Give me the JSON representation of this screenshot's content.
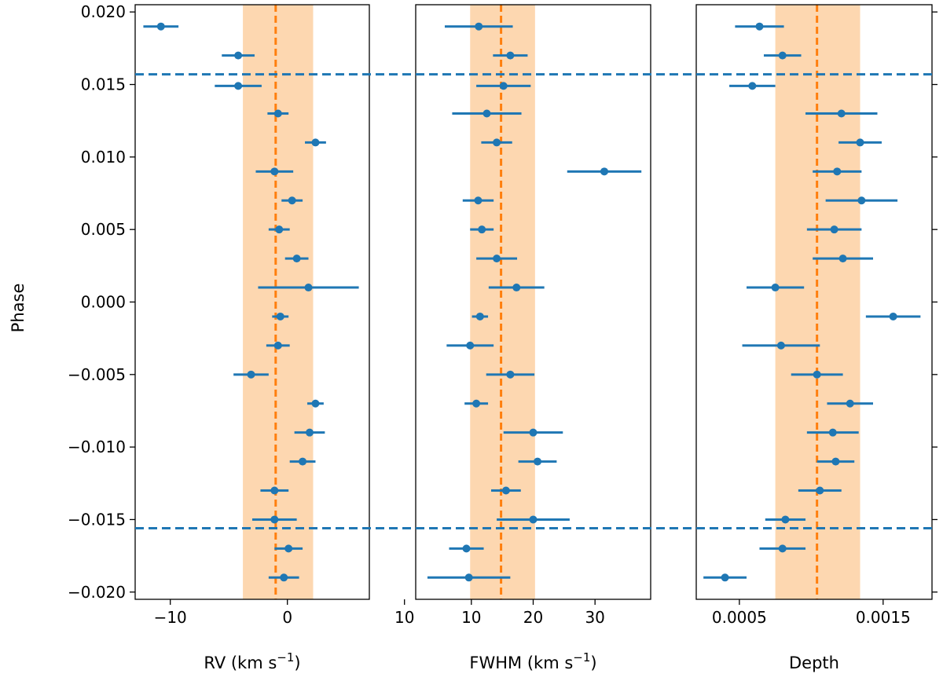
{
  "y_axis": {
    "label": "Phase",
    "range": [
      -0.0205,
      0.0205
    ],
    "ticks": [
      -0.02,
      -0.015,
      -0.01,
      -0.005,
      0.0,
      0.005,
      0.01,
      0.015,
      0.02
    ],
    "tick_labels": [
      "−0.020",
      "−0.015",
      "−0.010",
      "−0.005",
      "0.000",
      "0.005",
      "0.010",
      "0.015",
      "0.020"
    ]
  },
  "colors": {
    "points": "#1f77b4",
    "band": "#fdd0a2",
    "median": "#ff7f0e",
    "contacts": "#1f77b4"
  },
  "contact_phases": [
    0.0157,
    -0.0156
  ],
  "chart_data": [
    {
      "type": "scatter",
      "name": "rv",
      "xlabel": "RV (km s",
      "xlabel_sup": "−1",
      "xlabel_end": ")",
      "xlim": [
        -13,
        7
      ],
      "x_ticks": [
        -10,
        0,
        10
      ],
      "x_tick_labels": [
        "−10",
        "0",
        "10"
      ],
      "band": [
        -3.8,
        2.2
      ],
      "median": -1.0,
      "points": [
        {
          "phase": 0.019,
          "x": -10.8,
          "err": 1.5
        },
        {
          "phase": 0.017,
          "x": -4.2,
          "err": 1.4
        },
        {
          "phase": 0.0149,
          "x": -4.2,
          "err": 2.0
        },
        {
          "phase": 0.013,
          "x": -0.8,
          "err": 0.9
        },
        {
          "phase": 0.011,
          "x": 2.4,
          "err": 0.9
        },
        {
          "phase": 0.009,
          "x": -1.1,
          "err": 1.6
        },
        {
          "phase": 0.007,
          "x": 0.4,
          "err": 0.9
        },
        {
          "phase": 0.005,
          "x": -0.7,
          "err": 0.9
        },
        {
          "phase": 0.003,
          "x": 0.8,
          "err": 1.0
        },
        {
          "phase": 0.001,
          "x": 1.8,
          "err": 4.3
        },
        {
          "phase": -0.001,
          "x": -0.6,
          "err": 0.7
        },
        {
          "phase": -0.003,
          "x": -0.8,
          "err": 1.0
        },
        {
          "phase": -0.005,
          "x": -3.1,
          "err": 1.5
        },
        {
          "phase": -0.007,
          "x": 2.4,
          "err": 0.7
        },
        {
          "phase": -0.009,
          "x": 1.9,
          "err": 1.3
        },
        {
          "phase": -0.011,
          "x": 1.3,
          "err": 1.1
        },
        {
          "phase": -0.013,
          "x": -1.1,
          "err": 1.2
        },
        {
          "phase": -0.015,
          "x": -1.1,
          "err": 1.9
        },
        {
          "phase": -0.017,
          "x": 0.1,
          "err": 1.2
        },
        {
          "phase": -0.019,
          "x": -0.3,
          "err": 1.3
        }
      ]
    },
    {
      "type": "scatter",
      "name": "fwhm",
      "xlabel": "FWHM (km s",
      "xlabel_sup": "−1",
      "xlabel_end": ")",
      "xlim": [
        1,
        39
      ],
      "x_ticks": [
        10,
        20,
        30
      ],
      "x_tick_labels": [
        "10",
        "20",
        "30"
      ],
      "band": [
        9.8,
        20.3
      ],
      "median": 14.8,
      "points": [
        {
          "phase": 0.019,
          "x": 11.2,
          "err": 5.5
        },
        {
          "phase": 0.017,
          "x": 16.3,
          "err": 2.8
        },
        {
          "phase": 0.0149,
          "x": 15.2,
          "err": 4.4
        },
        {
          "phase": 0.013,
          "x": 12.5,
          "err": 5.6
        },
        {
          "phase": 0.011,
          "x": 14.1,
          "err": 2.5
        },
        {
          "phase": 0.009,
          "x": 31.5,
          "err": 6.0
        },
        {
          "phase": 0.007,
          "x": 11.1,
          "err": 2.5
        },
        {
          "phase": 0.005,
          "x": 11.7,
          "err": 1.9
        },
        {
          "phase": 0.003,
          "x": 14.1,
          "err": 3.3
        },
        {
          "phase": 0.001,
          "x": 17.3,
          "err": 4.5
        },
        {
          "phase": -0.001,
          "x": 11.4,
          "err": 1.3
        },
        {
          "phase": -0.003,
          "x": 9.8,
          "err": 3.8
        },
        {
          "phase": -0.005,
          "x": 16.3,
          "err": 3.9
        },
        {
          "phase": -0.007,
          "x": 10.8,
          "err": 1.9
        },
        {
          "phase": -0.009,
          "x": 20.0,
          "err": 4.8
        },
        {
          "phase": -0.011,
          "x": 20.7,
          "err": 3.1
        },
        {
          "phase": -0.013,
          "x": 15.6,
          "err": 2.4
        },
        {
          "phase": -0.015,
          "x": 20.0,
          "err": 5.9
        },
        {
          "phase": -0.017,
          "x": 9.2,
          "err": 2.8
        },
        {
          "phase": -0.019,
          "x": 9.6,
          "err": 6.7
        }
      ]
    },
    {
      "type": "scatter",
      "name": "depth",
      "xlabel": "Depth",
      "xlim": [
        0.0002,
        0.00184
      ],
      "x_ticks": [
        0.0005,
        0.0015
      ],
      "x_tick_labels": [
        "0.0005",
        "0.0015"
      ],
      "band": [
        0.00075,
        0.00134
      ],
      "median": 0.00104,
      "points": [
        {
          "phase": 0.019,
          "x": 0.00064,
          "err": 0.00017
        },
        {
          "phase": 0.017,
          "x": 0.0008,
          "err": 0.00013
        },
        {
          "phase": 0.0149,
          "x": 0.00059,
          "err": 0.00016
        },
        {
          "phase": 0.013,
          "x": 0.00121,
          "err": 0.00025
        },
        {
          "phase": 0.011,
          "x": 0.00134,
          "err": 0.00015
        },
        {
          "phase": 0.009,
          "x": 0.00118,
          "err": 0.00017
        },
        {
          "phase": 0.007,
          "x": 0.00135,
          "err": 0.00025
        },
        {
          "phase": 0.005,
          "x": 0.00116,
          "err": 0.00019
        },
        {
          "phase": 0.003,
          "x": 0.00122,
          "err": 0.00021
        },
        {
          "phase": 0.001,
          "x": 0.00075,
          "err": 0.0002
        },
        {
          "phase": -0.001,
          "x": 0.00157,
          "err": 0.00019
        },
        {
          "phase": -0.003,
          "x": 0.00079,
          "err": 0.00027
        },
        {
          "phase": -0.005,
          "x": 0.00104,
          "err": 0.00018
        },
        {
          "phase": -0.007,
          "x": 0.00127,
          "err": 0.00016
        },
        {
          "phase": -0.009,
          "x": 0.00115,
          "err": 0.00018
        },
        {
          "phase": -0.011,
          "x": 0.00117,
          "err": 0.00013
        },
        {
          "phase": -0.013,
          "x": 0.00106,
          "err": 0.00015
        },
        {
          "phase": -0.015,
          "x": 0.00082,
          "err": 0.00014
        },
        {
          "phase": -0.017,
          "x": 0.0008,
          "err": 0.00016
        },
        {
          "phase": -0.019,
          "x": 0.0004,
          "err": 0.00015
        }
      ]
    }
  ]
}
